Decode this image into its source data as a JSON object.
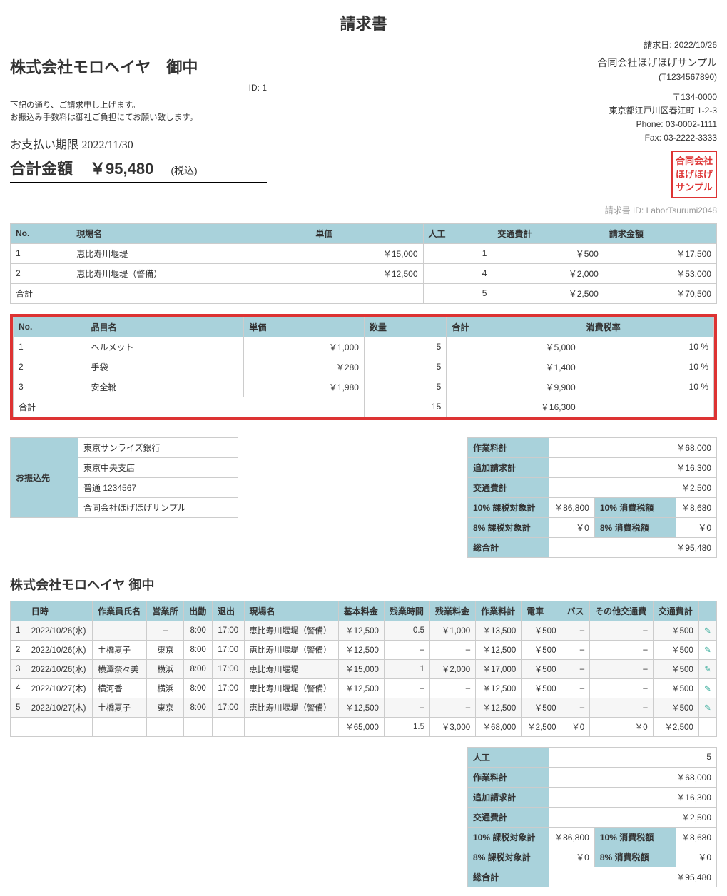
{
  "doc": {
    "title": "請求書",
    "date_label": "請求日:",
    "date": "2022/10/26",
    "invoice_id_label": "請求書 ID:",
    "invoice_id": "LaborTsurumi2048"
  },
  "client": {
    "name": "株式会社モロヘイヤ　御中",
    "id_label": "ID:",
    "id": "1",
    "note1": "下記の通り、ご請求申し上げます。",
    "note2": "お振込み手数料は御社ご負担にてお願い致します。",
    "due_label": "お支払い期限",
    "due_date": "2022/11/30",
    "total_label": "合計金額",
    "total_amount": "￥95,480",
    "tax_inc": "(税込)"
  },
  "issuer": {
    "company": "合同会社ほげほげサンプル",
    "reg_no": "(T1234567890)",
    "postal": "〒134-0000",
    "address": "東京都江戸川区春江町 1-2-3",
    "phone": "Phone: 03-0002-1111",
    "fax": "Fax: 03-2222-3333",
    "seal1": "合同会社",
    "seal2": "ほげほげ",
    "seal3": "サンプル"
  },
  "sites": {
    "headers": [
      "No.",
      "現場名",
      "単価",
      "人工",
      "交通費計",
      "請求金額"
    ],
    "rows": [
      [
        "1",
        "恵比寿川堰堤",
        "￥15,000",
        "1",
        "￥500",
        "￥17,500"
      ],
      [
        "2",
        "恵比寿川堰堤（警備）",
        "￥12,500",
        "4",
        "￥2,000",
        "￥53,000"
      ]
    ],
    "total_label": "合計",
    "totals": [
      "5",
      "￥2,500",
      "￥70,500"
    ]
  },
  "items": {
    "headers": [
      "No.",
      "品目名",
      "単価",
      "数量",
      "合計",
      "消費税率"
    ],
    "rows": [
      [
        "1",
        "ヘルメット",
        "￥1,000",
        "5",
        "￥5,000",
        "10 %"
      ],
      [
        "2",
        "手袋",
        "￥280",
        "5",
        "￥1,400",
        "10 %"
      ],
      [
        "3",
        "安全靴",
        "￥1,980",
        "5",
        "￥9,900",
        "10 %"
      ]
    ],
    "total_label": "合計",
    "totals": [
      "15",
      "￥16,300",
      ""
    ]
  },
  "bank": {
    "header": "お振込先",
    "rows": [
      "東京サンライズ銀行",
      "東京中央支店",
      "普通 1234567",
      "合同会社ほげほげサンプル"
    ]
  },
  "summary1": {
    "rows": [
      [
        "作業料計",
        "￥68,000"
      ],
      [
        "追加請求計",
        "￥16,300"
      ],
      [
        "交通費計",
        "￥2,500"
      ],
      [
        "10% 課税対象計",
        "￥86,800",
        "10% 消費税額",
        "￥8,680"
      ],
      [
        "8% 課税対象計",
        "￥0",
        "8% 消費税額",
        "￥0"
      ],
      [
        "総合計",
        "￥95,480"
      ]
    ]
  },
  "detail": {
    "client": "株式会社モロヘイヤ 御中",
    "headers": [
      "",
      "日時",
      "作業員氏名",
      "営業所",
      "出勤",
      "退出",
      "現場名",
      "基本料金",
      "残業時間",
      "残業料金",
      "作業料計",
      "電車",
      "バス",
      "その他交通費",
      "交通費計",
      ""
    ],
    "rows": [
      [
        "1",
        "2022/10/26(水)",
        "",
        "–",
        "8:00",
        "17:00",
        "恵比寿川堰堤（警備）",
        "￥12,500",
        "0.5",
        "￥1,000",
        "￥13,500",
        "￥500",
        "–",
        "–",
        "￥500"
      ],
      [
        "2",
        "2022/10/26(水)",
        "土橋夏子",
        "東京",
        "8:00",
        "17:00",
        "恵比寿川堰堤（警備）",
        "￥12,500",
        "–",
        "–",
        "￥12,500",
        "￥500",
        "–",
        "–",
        "￥500"
      ],
      [
        "3",
        "2022/10/26(水)",
        "横澤奈々美",
        "横浜",
        "8:00",
        "17:00",
        "恵比寿川堰堤",
        "￥15,000",
        "1",
        "￥2,000",
        "￥17,000",
        "￥500",
        "–",
        "–",
        "￥500"
      ],
      [
        "4",
        "2022/10/27(木)",
        "横河香",
        "横浜",
        "8:00",
        "17:00",
        "恵比寿川堰堤（警備）",
        "￥12,500",
        "–",
        "–",
        "￥12,500",
        "￥500",
        "–",
        "–",
        "￥500"
      ],
      [
        "5",
        "2022/10/27(木)",
        "土橋夏子",
        "東京",
        "8:00",
        "17:00",
        "恵比寿川堰堤（警備）",
        "￥12,500",
        "–",
        "–",
        "￥12,500",
        "￥500",
        "–",
        "–",
        "￥500"
      ]
    ],
    "footer": [
      "",
      "",
      "",
      "",
      "",
      "",
      "",
      "￥65,000",
      "1.5",
      "￥3,000",
      "￥68,000",
      "￥2,500",
      "￥0",
      "￥0",
      "￥2,500",
      ""
    ]
  },
  "summary2": {
    "rows": [
      [
        "人工",
        "5"
      ],
      [
        "作業料計",
        "￥68,000"
      ],
      [
        "追加請求計",
        "￥16,300"
      ],
      [
        "交通費計",
        "￥2,500"
      ],
      [
        "10% 課税対象計",
        "￥86,800",
        "10% 消費税額",
        "￥8,680"
      ],
      [
        "8% 課税対象計",
        "￥0",
        "8% 消費税額",
        "￥0"
      ],
      [
        "総合計",
        "￥95,480"
      ]
    ]
  },
  "icons": {
    "edit": "✎"
  }
}
